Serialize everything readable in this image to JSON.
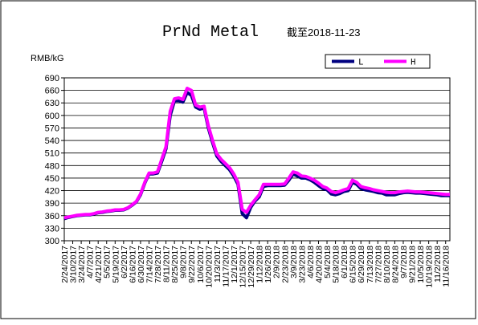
{
  "chart_data": {
    "type": "line",
    "title": "PrNd Metal",
    "subtitle": "截至2018-11-23",
    "y_label": "RMB/kG",
    "categories": [
      "2/24/2017",
      null,
      "3/10/2017",
      null,
      "3/24/2017",
      null,
      "4/7/2017",
      null,
      "4/21/2017",
      null,
      "5/5/2017",
      null,
      "5/19/2017",
      null,
      "6/2/2017",
      null,
      "6/16/2017",
      null,
      "6/30/2017",
      null,
      "7/14/2017",
      null,
      "7/28/2017",
      null,
      "8/11/2017",
      null,
      "8/25/2017",
      null,
      "9/8/2017",
      null,
      "9/22/2017",
      null,
      "10/6/2017",
      null,
      "10/20/2017",
      null,
      "11/3/2017",
      null,
      "11/17/2017",
      null,
      "12/1/2017",
      null,
      "12/15/2017",
      null,
      "12/29/2017",
      null,
      "1/12/2018",
      null,
      "1/26/2018",
      null,
      "2/9/2018",
      null,
      "2/23/2018",
      null,
      "3/9/2018",
      null,
      "3/23/2018",
      null,
      "4/6/2018",
      null,
      "4/20/2018",
      null,
      "5/4/2018",
      null,
      "5/18/2018",
      null,
      "6/1/2018",
      null,
      "6/15/2018",
      null,
      "6/29/2018",
      null,
      "7/13/2018",
      null,
      "7/27/2018",
      null,
      "8/10/2018",
      null,
      "8/24/2018",
      null,
      "9/7/2018",
      null,
      "9/21/2018",
      null,
      "10/5/2018",
      null,
      "10/19/2018",
      null,
      "11/2/2018",
      null,
      "11/16/2018",
      null
    ],
    "series": [
      {
        "name": "L",
        "color": "#000080",
        "values": [
          353,
          356,
          358,
          360,
          361,
          362,
          362,
          364,
          367,
          368,
          370,
          371,
          373,
          373,
          374,
          378,
          385,
          393,
          410,
          438,
          460,
          460,
          462,
          490,
          520,
          600,
          635,
          635,
          632,
          655,
          648,
          620,
          615,
          618,
          570,
          535,
          503,
          490,
          480,
          470,
          455,
          435,
          365,
          355,
          380,
          395,
          405,
          430,
          432,
          432,
          432,
          432,
          433,
          445,
          460,
          455,
          450,
          450,
          446,
          440,
          432,
          425,
          422,
          412,
          410,
          413,
          418,
          420,
          440,
          435,
          425,
          422,
          420,
          418,
          415,
          414,
          410,
          410,
          410,
          413,
          415,
          416,
          415,
          414,
          414,
          413,
          412,
          411,
          410,
          408,
          408,
          408
        ]
      },
      {
        "name": "H",
        "color": "#ff00ff",
        "values": [
          355,
          357,
          359,
          361,
          362,
          363,
          363,
          365,
          368,
          369,
          371,
          372,
          374,
          374,
          375,
          379,
          386,
          394,
          412,
          440,
          462,
          462,
          465,
          495,
          525,
          610,
          640,
          642,
          638,
          665,
          660,
          625,
          620,
          622,
          575,
          540,
          508,
          495,
          485,
          475,
          460,
          440,
          375,
          368,
          385,
          398,
          410,
          435,
          435,
          435,
          435,
          435,
          436,
          450,
          465,
          462,
          455,
          454,
          450,
          445,
          438,
          430,
          426,
          418,
          415,
          418,
          422,
          425,
          445,
          440,
          430,
          427,
          425,
          422,
          420,
          418,
          416,
          415,
          415,
          417,
          418,
          419,
          418,
          417,
          417,
          416,
          415,
          414,
          413,
          412,
          411,
          411
        ]
      }
    ],
    "ylim": [
      300,
      690
    ],
    "yticks": [
      300,
      330,
      360,
      390,
      420,
      450,
      480,
      510,
      540,
      570,
      600,
      630,
      660,
      690
    ],
    "grid": true,
    "legend_position": "top-right"
  }
}
